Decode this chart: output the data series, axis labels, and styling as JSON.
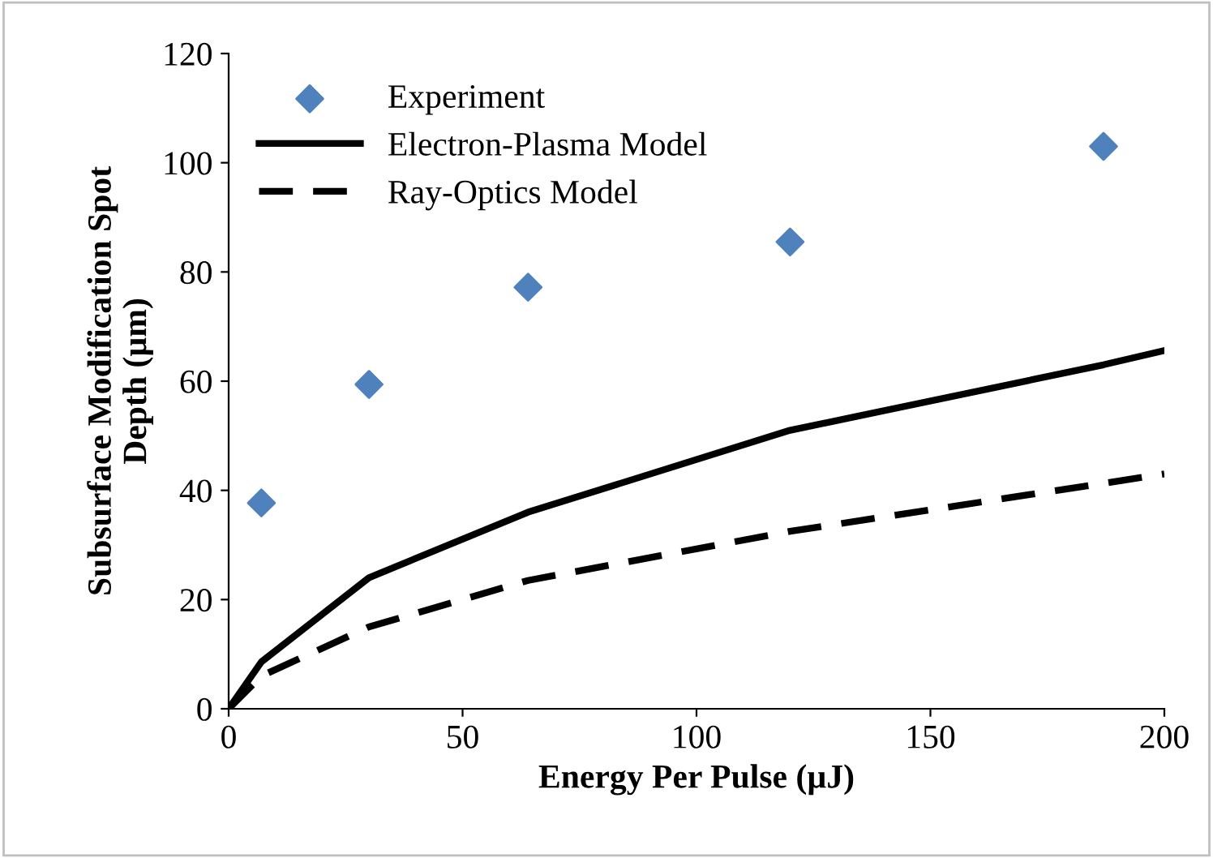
{
  "chart_data": {
    "type": "line",
    "xlabel": "Energy Per Pulse (µJ)",
    "ylabel": "Subsurface Modification Spot\nDepth (µm)",
    "xlim": [
      0,
      200
    ],
    "xticks": [
      0,
      50,
      100,
      150,
      200
    ],
    "ylim": [
      0,
      120
    ],
    "yticks": [
      0,
      20,
      40,
      60,
      80,
      100,
      120
    ],
    "grid": false,
    "legend": "top left",
    "series": [
      {
        "name": "Experiment",
        "type": "scatter",
        "marker": "diamond",
        "color": "#4f81bd",
        "x": [
          7,
          30,
          64,
          120,
          187
        ],
        "values": [
          37.7,
          59.4,
          77.2,
          85.5,
          103
        ]
      },
      {
        "name": "Electron-Plasma Model",
        "line_style": "solid",
        "color": "#000000",
        "x": [
          0,
          7,
          30,
          64,
          120,
          187,
          200
        ],
        "values": [
          0,
          8.6,
          24,
          36,
          51,
          63,
          65.6
        ]
      },
      {
        "name": "Ray-Optics Model",
        "line_style": "dashed",
        "color": "#000000",
        "x": [
          0,
          7,
          30,
          64,
          120,
          200
        ],
        "values": [
          0,
          6,
          15,
          23.5,
          32.5,
          43
        ]
      }
    ]
  }
}
